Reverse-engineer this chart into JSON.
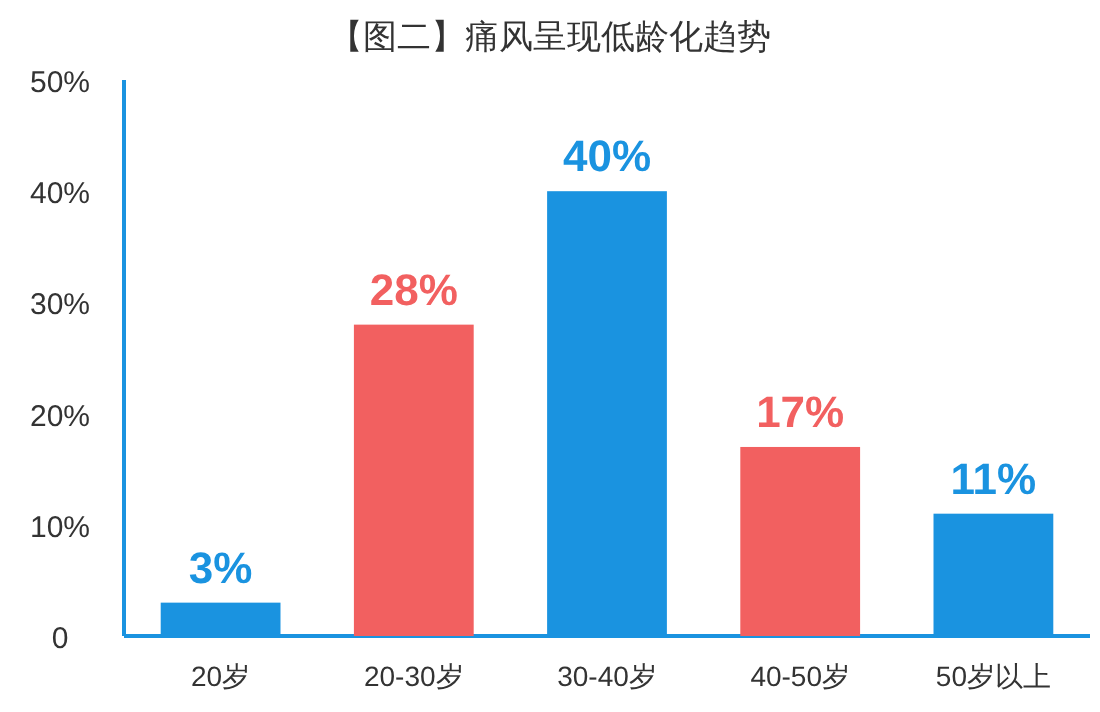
{
  "chart_data": {
    "type": "bar",
    "title": "【图二】痛风呈现低龄化趋势",
    "categories": [
      "20岁",
      "20-30岁",
      "30-40岁",
      "40-50岁",
      "50岁以上"
    ],
    "values": [
      3,
      28,
      40,
      17,
      11
    ],
    "colors": [
      "#1a93e0",
      "#f26060",
      "#1a93e0",
      "#f26060",
      "#1a93e0"
    ],
    "value_labels": [
      "3%",
      "28%",
      "40%",
      "17%",
      "11%"
    ],
    "ylim": [
      0,
      50
    ],
    "yticks": [
      {
        "value": 0,
        "label": "0"
      },
      {
        "value": 10,
        "label": "10%"
      },
      {
        "value": 20,
        "label": "20%"
      },
      {
        "value": 30,
        "label": "30%"
      },
      {
        "value": 40,
        "label": "40%"
      },
      {
        "value": 50,
        "label": "50%"
      }
    ]
  }
}
